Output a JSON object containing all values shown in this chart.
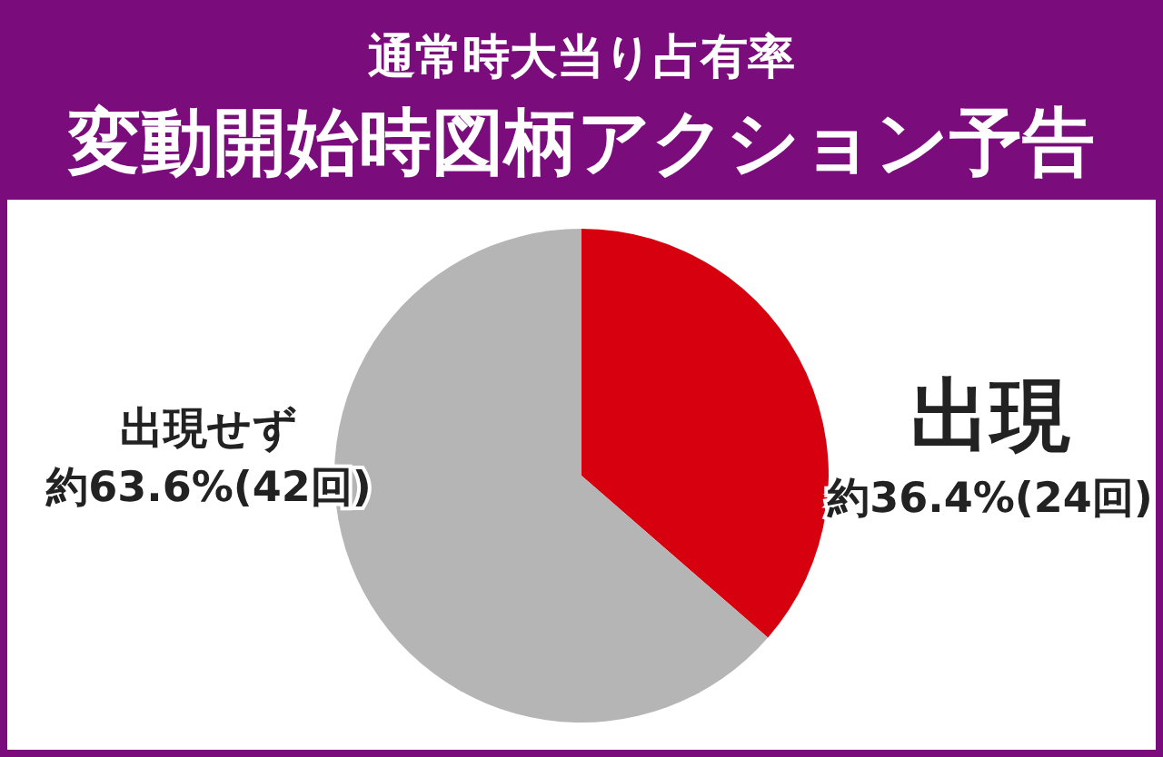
{
  "chart_data": {
    "type": "pie",
    "subtitle": "通常時大当り占有率",
    "title": "変動開始時図柄アクション予告",
    "categories": [
      "出現",
      "出現せず"
    ],
    "values": [
      36.4,
      63.6
    ],
    "value_labels": [
      "約36.4%(24回)",
      "約63.6%(42回)"
    ],
    "colors": [
      "#d7000f",
      "#b5b5b6"
    ]
  }
}
